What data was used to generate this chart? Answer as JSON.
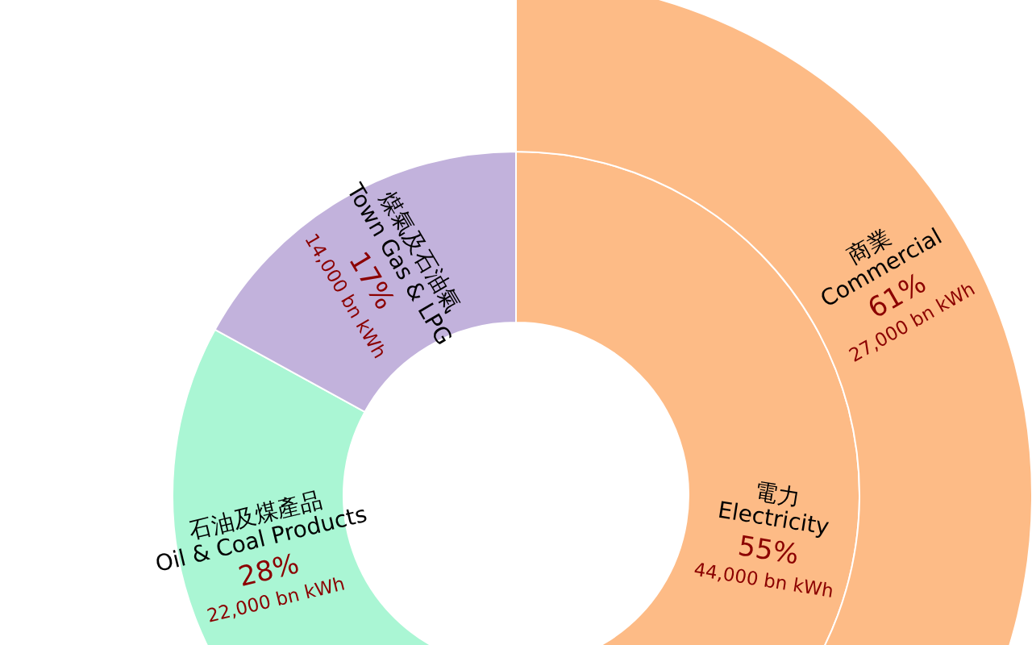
{
  "chart_data": {
    "type": "other",
    "categories": [
      "電力\nElectricity",
      "石油及煤產品\nOil & Coal Products",
      "煤氣及石油氣\nTown Gas & LPG",
      "商業\nCommercial"
    ],
    "series": [
      {
        "values": [
          55,
          28,
          17,
          null
        ],
        "colors": [
          "#fdbb86",
          "#aaf6d4",
          "#c2b2dc",
          null
        ],
        "value_labels": [
          "55%\n44,000 bn kWh",
          "28%\n22,000 bn kWh",
          "17%\n14,000 bn kWh",
          null
        ]
      },
      {
        "values": [
          null,
          null,
          null,
          61
        ],
        "colors": [
          null,
          null,
          null,
          "#fdbb86"
        ],
        "value_labels": [
          null,
          null,
          null,
          "61%\n27,000 bn kWh"
        ]
      }
    ]
  }
}
